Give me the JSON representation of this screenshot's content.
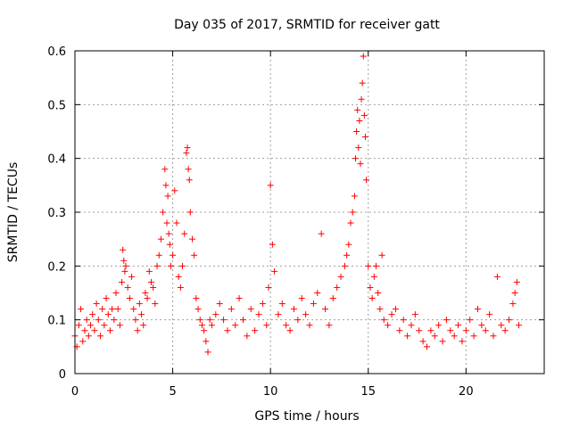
{
  "chart_data": {
    "type": "scatter",
    "title": "Day 035 of 2017, SRMTID for receiver gatt",
    "xlabel": "GPS time / hours",
    "ylabel": "SRMTID / TECUs",
    "xlim": [
      0,
      24
    ],
    "ylim": [
      0,
      0.6
    ],
    "xticks": [
      0,
      5,
      10,
      15,
      20
    ],
    "xtick_labels": [
      "0",
      "5",
      "10",
      "15",
      "20"
    ],
    "yticks": [
      0,
      0.1,
      0.2,
      0.3,
      0.4,
      0.5,
      0.6
    ],
    "ytick_labels": [
      "0",
      "0.1",
      "0.2",
      "0.3",
      "0.4",
      "0.5",
      "0.6"
    ],
    "grid": true,
    "marker": "+",
    "color": "#ff0000",
    "series": [
      {
        "name": "SRMTID",
        "x": [
          0.0,
          0.1,
          0.2,
          0.3,
          0.4,
          0.5,
          0.6,
          0.7,
          0.8,
          0.9,
          1.0,
          1.1,
          1.2,
          1.3,
          1.4,
          1.5,
          1.6,
          1.7,
          1.8,
          1.9,
          2.0,
          2.1,
          2.2,
          2.3,
          2.4,
          2.45,
          2.5,
          2.55,
          2.6,
          2.7,
          2.8,
          2.9,
          3.0,
          3.1,
          3.2,
          3.3,
          3.4,
          3.5,
          3.6,
          3.7,
          3.8,
          3.9,
          4.0,
          4.1,
          4.2,
          4.3,
          4.4,
          4.5,
          4.6,
          4.65,
          4.7,
          4.75,
          4.8,
          4.85,
          4.9,
          5.0,
          5.1,
          5.2,
          5.3,
          5.4,
          5.5,
          5.6,
          5.7,
          5.75,
          5.8,
          5.85,
          5.9,
          6.0,
          6.1,
          6.2,
          6.3,
          6.4,
          6.5,
          6.6,
          6.7,
          6.8,
          6.9,
          7.0,
          7.2,
          7.4,
          7.6,
          7.8,
          8.0,
          8.2,
          8.4,
          8.6,
          8.8,
          9.0,
          9.2,
          9.4,
          9.6,
          9.8,
          9.9,
          10.0,
          10.1,
          10.2,
          10.4,
          10.6,
          10.8,
          11.0,
          11.2,
          11.4,
          11.6,
          11.8,
          12.0,
          12.2,
          12.4,
          12.6,
          12.8,
          13.0,
          13.2,
          13.4,
          13.6,
          13.8,
          13.9,
          14.0,
          14.1,
          14.2,
          14.3,
          14.35,
          14.4,
          14.45,
          14.5,
          14.55,
          14.6,
          14.65,
          14.7,
          14.75,
          14.8,
          14.85,
          14.9,
          15.0,
          15.1,
          15.2,
          15.3,
          15.4,
          15.5,
          15.6,
          15.7,
          15.8,
          16.0,
          16.2,
          16.4,
          16.6,
          16.8,
          17.0,
          17.2,
          17.4,
          17.6,
          17.8,
          18.0,
          18.2,
          18.4,
          18.6,
          18.8,
          19.0,
          19.2,
          19.4,
          19.6,
          19.8,
          20.0,
          20.2,
          20.4,
          20.6,
          20.8,
          21.0,
          21.2,
          21.4,
          21.6,
          21.8,
          22.0,
          22.2,
          22.4,
          22.5,
          22.6,
          22.7
        ],
        "y": [
          0.07,
          0.05,
          0.09,
          0.12,
          0.06,
          0.08,
          0.1,
          0.07,
          0.09,
          0.11,
          0.08,
          0.13,
          0.1,
          0.07,
          0.12,
          0.09,
          0.14,
          0.11,
          0.08,
          0.12,
          0.1,
          0.15,
          0.12,
          0.09,
          0.17,
          0.23,
          0.21,
          0.19,
          0.2,
          0.16,
          0.14,
          0.18,
          0.12,
          0.1,
          0.08,
          0.13,
          0.11,
          0.09,
          0.15,
          0.14,
          0.19,
          0.17,
          0.16,
          0.13,
          0.2,
          0.22,
          0.25,
          0.3,
          0.38,
          0.35,
          0.28,
          0.33,
          0.26,
          0.24,
          0.2,
          0.22,
          0.34,
          0.28,
          0.18,
          0.16,
          0.2,
          0.26,
          0.41,
          0.42,
          0.38,
          0.36,
          0.3,
          0.25,
          0.22,
          0.14,
          0.12,
          0.1,
          0.09,
          0.08,
          0.06,
          0.04,
          0.1,
          0.09,
          0.11,
          0.13,
          0.1,
          0.08,
          0.12,
          0.09,
          0.14,
          0.1,
          0.07,
          0.12,
          0.08,
          0.11,
          0.13,
          0.09,
          0.16,
          0.35,
          0.24,
          0.19,
          0.11,
          0.13,
          0.09,
          0.08,
          0.12,
          0.1,
          0.14,
          0.11,
          0.09,
          0.13,
          0.15,
          0.26,
          0.12,
          0.09,
          0.14,
          0.16,
          0.18,
          0.2,
          0.22,
          0.24,
          0.28,
          0.3,
          0.33,
          0.4,
          0.45,
          0.49,
          0.42,
          0.47,
          0.39,
          0.51,
          0.54,
          0.59,
          0.48,
          0.44,
          0.36,
          0.2,
          0.16,
          0.14,
          0.18,
          0.2,
          0.15,
          0.12,
          0.22,
          0.1,
          0.09,
          0.11,
          0.12,
          0.08,
          0.1,
          0.07,
          0.09,
          0.11,
          0.08,
          0.06,
          0.05,
          0.08,
          0.07,
          0.09,
          0.06,
          0.1,
          0.08,
          0.07,
          0.09,
          0.06,
          0.08,
          0.1,
          0.07,
          0.12,
          0.09,
          0.08,
          0.11,
          0.07,
          0.18,
          0.09,
          0.08,
          0.1,
          0.13,
          0.15,
          0.17,
          0.09
        ]
      }
    ]
  }
}
